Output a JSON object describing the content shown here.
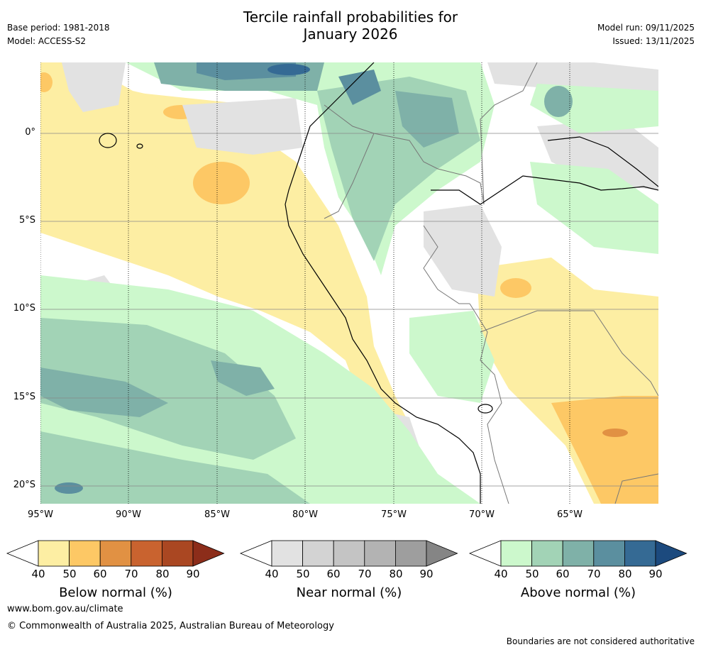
{
  "title": {
    "line1": "Tercile rainfall probabilities for",
    "line2": "January 2026"
  },
  "meta": {
    "base_period": "Base period: 1981-2018",
    "model": "Model: ACCESS-S2",
    "model_run": "Model run: 09/11/2025",
    "issued": "Issued: 13/11/2025"
  },
  "map": {
    "x_ticks": [
      "95°W",
      "90°W",
      "85°W",
      "80°W",
      "75°W",
      "70°W",
      "65°W"
    ],
    "y_ticks": [
      "0°",
      "5°S",
      "10°S",
      "15°S",
      "20°S"
    ],
    "extent": {
      "lon_min": -95,
      "lon_max": -60,
      "lat_min": -21,
      "lat_max": 4
    }
  },
  "colorbars": [
    {
      "label": "Below normal (%)",
      "ticks": [
        "40",
        "50",
        "60",
        "70",
        "80",
        "90"
      ],
      "colors": [
        "#fdeea3",
        "#fdc865",
        "#e19143",
        "#c9632f",
        "#aa4722",
        "#8c2d1a"
      ]
    },
    {
      "label": "Near normal (%)",
      "ticks": [
        "40",
        "50",
        "60",
        "70",
        "80",
        "90"
      ],
      "colors": [
        "#e2e2e2",
        "#d3d3d3",
        "#c4c4c4",
        "#b3b3b3",
        "#9e9e9e",
        "#858585"
      ]
    },
    {
      "label": "Above normal (%)",
      "ticks": [
        "40",
        "50",
        "60",
        "70",
        "80",
        "90"
      ],
      "colors": [
        "#ccf8cc",
        "#a2d3b6",
        "#7fb1a8",
        "#5b8f9f",
        "#356a94",
        "#1c4a7e"
      ]
    }
  ],
  "footer": {
    "website": "www.bom.gov.au/climate",
    "copyright": "© Commonwealth of Australia 2025, Australian Bureau of Meteorology",
    "note": "Boundaries are not considered authoritative"
  }
}
